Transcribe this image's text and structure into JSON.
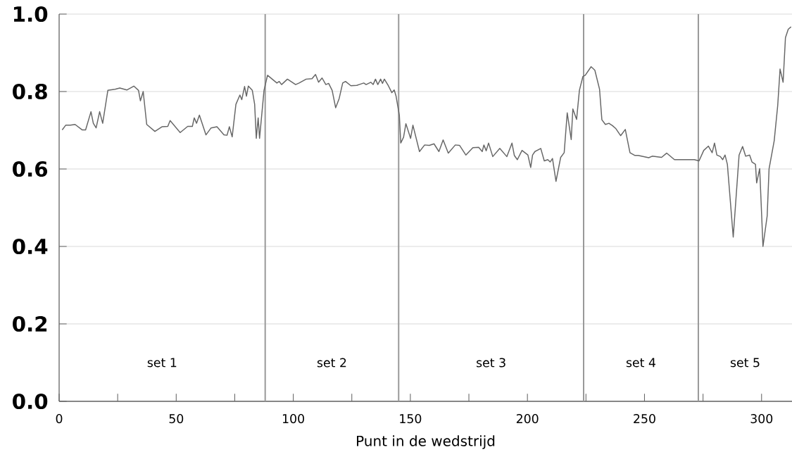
{
  "chart_data": {
    "type": "line",
    "xlabel": "Punt in de wedstrijd",
    "x": [
      1.3,
      2.8,
      4.8,
      6.8,
      9.8,
      11.3,
      13.6,
      14.6,
      15.8,
      17.3,
      18.6,
      20.8,
      23.9,
      25.9,
      28.9,
      31.9,
      33.9,
      34.7,
      35.9,
      37.4,
      40.9,
      43.9,
      46.4,
      47.4,
      51.7,
      54.9,
      56.9,
      57.7,
      58.7,
      59.9,
      62.7,
      64.9,
      67.4,
      70.4,
      71.7,
      72.7,
      73.9,
      75.5,
      77.2,
      78.0,
      79.2,
      80.0,
      80.8,
      82.5,
      83.5,
      84.2,
      85.0,
      85.6,
      87.5,
      89.0,
      93.0,
      94.0,
      95.0,
      97.5,
      101.0,
      102.5,
      105.5,
      108.0,
      109.5,
      110.8,
      112.3,
      113.9,
      115.1,
      116.6,
      118.1,
      119.6,
      121.1,
      122.3,
      124.6,
      127.1,
      128.1,
      130.1,
      131.1,
      133.1,
      134.1,
      135.1,
      136.1,
      137.3,
      138.1,
      138.9,
      140.6,
      142.1,
      143.1,
      143.9,
      145.3,
      145.9,
      147.1,
      148.1,
      150.1,
      151.1,
      153.9,
      156.1,
      158.1,
      160.1,
      162.2,
      164.0,
      166.2,
      169.2,
      171.0,
      173.7,
      176.7,
      179.2,
      180.7,
      181.4,
      182.4,
      183.4,
      185.2,
      188.2,
      191.2,
      193.4,
      194.4,
      195.7,
      197.7,
      200.2,
      201.4,
      202.2,
      203.2,
      205.7,
      207.2,
      208.7,
      209.7,
      210.7,
      212.2,
      214.2,
      215.7,
      217.0,
      218.7,
      219.4,
      221.0,
      222.2,
      223.7,
      224.7,
      227.2,
      228.8,
      230.8,
      231.8,
      233.3,
      234.8,
      236.3,
      237.8,
      239.8,
      241.8,
      243.8,
      245.8,
      247.3,
      251.8,
      253.3,
      257.3,
      259.5,
      262.8,
      271.3,
      273.3,
      275.3,
      277.3,
      278.9,
      279.9,
      280.9,
      282.4,
      283.4,
      284.4,
      285.4,
      287.9,
      290.4,
      291.9,
      293.2,
      294.9,
      295.9,
      297.4,
      297.9,
      299.2,
      300.6,
      302.4,
      303.2,
      305.4,
      306.9,
      307.9,
      309.2,
      310.2,
      311.4,
      312.6
    ],
    "series": [
      {
        "color": "#666666",
        "values": [
          0.701,
          0.713,
          0.713,
          0.715,
          0.701,
          0.701,
          0.748,
          0.718,
          0.706,
          0.748,
          0.718,
          0.803,
          0.806,
          0.809,
          0.804,
          0.814,
          0.803,
          0.776,
          0.8,
          0.715,
          0.697,
          0.709,
          0.71,
          0.725,
          0.694,
          0.71,
          0.71,
          0.732,
          0.718,
          0.739,
          0.688,
          0.706,
          0.709,
          0.688,
          0.687,
          0.709,
          0.683,
          0.767,
          0.791,
          0.779,
          0.813,
          0.788,
          0.814,
          0.803,
          0.767,
          0.679,
          0.732,
          0.679,
          0.803,
          0.842,
          0.822,
          0.826,
          0.818,
          0.832,
          0.818,
          0.822,
          0.832,
          0.833,
          0.844,
          0.824,
          0.835,
          0.818,
          0.821,
          0.803,
          0.758,
          0.782,
          0.822,
          0.826,
          0.815,
          0.816,
          0.818,
          0.822,
          0.818,
          0.824,
          0.818,
          0.832,
          0.818,
          0.832,
          0.821,
          0.832,
          0.815,
          0.797,
          0.804,
          0.788,
          0.739,
          0.667,
          0.682,
          0.717,
          0.679,
          0.713,
          0.645,
          0.662,
          0.661,
          0.665,
          0.645,
          0.675,
          0.641,
          0.662,
          0.661,
          0.636,
          0.655,
          0.656,
          0.645,
          0.662,
          0.647,
          0.667,
          0.632,
          0.653,
          0.632,
          0.667,
          0.635,
          0.624,
          0.648,
          0.636,
          0.604,
          0.636,
          0.645,
          0.653,
          0.621,
          0.624,
          0.618,
          0.627,
          0.568,
          0.63,
          0.642,
          0.745,
          0.676,
          0.755,
          0.728,
          0.803,
          0.839,
          0.842,
          0.864,
          0.855,
          0.806,
          0.727,
          0.715,
          0.718,
          0.712,
          0.704,
          0.686,
          0.702,
          0.642,
          0.635,
          0.635,
          0.629,
          0.633,
          0.63,
          0.641,
          0.624,
          0.624,
          0.621,
          0.648,
          0.659,
          0.642,
          0.667,
          0.636,
          0.632,
          0.624,
          0.636,
          0.612,
          0.424,
          0.636,
          0.658,
          0.633,
          0.636,
          0.618,
          0.612,
          0.564,
          0.601,
          0.4,
          0.479,
          0.6,
          0.673,
          0.764,
          0.858,
          0.824,
          0.939,
          0.961,
          0.967
        ]
      }
    ],
    "xlim": [
      0,
      313
    ],
    "ylim": [
      0,
      1
    ],
    "xticks": [
      0,
      {
        "value": 25,
        "label": null
      },
      50,
      {
        "value": 75,
        "label": null
      },
      100,
      {
        "value": 125,
        "label": null
      },
      150,
      {
        "value": 175,
        "label": null
      },
      200,
      {
        "value": 225,
        "label": null
      },
      250,
      {
        "value": 275,
        "label": null
      },
      300
    ],
    "yticks": [
      {
        "value": 0,
        "label": "0.0"
      },
      {
        "value": 0.2,
        "label": "0.2"
      },
      {
        "value": 0.4,
        "label": "0.4"
      },
      {
        "value": 0.6,
        "label": "0.6"
      },
      {
        "value": 0.8,
        "label": "0.8"
      },
      {
        "value": 1,
        "label": "1.0"
      }
    ],
    "grid": "y",
    "line_style": "solid",
    "marker": "none",
    "ref_lines": [
      {
        "axis": "x",
        "value": 88,
        "color": "#999999"
      },
      {
        "axis": "x",
        "value": 145,
        "color": "#999999"
      },
      {
        "axis": "x",
        "value": 224,
        "color": "#999999"
      },
      {
        "axis": "x",
        "value": 273,
        "color": "#999999"
      }
    ],
    "annotations": [
      "set 1",
      "set 2",
      "set 3",
      "set 4",
      "set 5"
    ]
  }
}
